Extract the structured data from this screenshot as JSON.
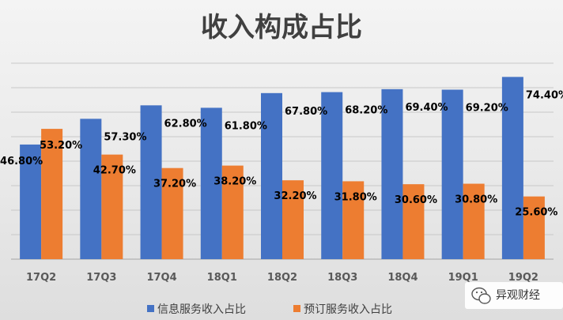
{
  "chart_data": {
    "type": "bar",
    "title": "收入构成占比",
    "categories": [
      "17Q2",
      "17Q3",
      "17Q4",
      "18Q1",
      "18Q2",
      "18Q3",
      "18Q4",
      "19Q1",
      "19Q2"
    ],
    "series": [
      {
        "name": "信息服务收入占比",
        "color": "#4472C4",
        "values": [
          46.8,
          57.3,
          62.8,
          61.8,
          67.8,
          68.2,
          69.4,
          69.2,
          74.4
        ],
        "labels": [
          "46.80%",
          "57.30%",
          "62.80%",
          "61.80%",
          "67.80%",
          "68.20%",
          "69.40%",
          "69.20%",
          "74.40%"
        ]
      },
      {
        "name": "预订服务收入占比",
        "color": "#ED7D31",
        "values": [
          53.2,
          42.7,
          37.2,
          38.2,
          32.2,
          31.8,
          30.6,
          30.8,
          25.6
        ],
        "labels": [
          "53.20%",
          "42.70%",
          "37.20%",
          "38.20%",
          "32.20%",
          "31.80%",
          "30.60%",
          "30.80%",
          "25.60%"
        ]
      }
    ],
    "ylim": [
      0,
      80
    ],
    "grid": true,
    "legend_position": "bottom"
  },
  "watermark": {
    "text": "异观财经",
    "icon": "wechat-icon"
  }
}
